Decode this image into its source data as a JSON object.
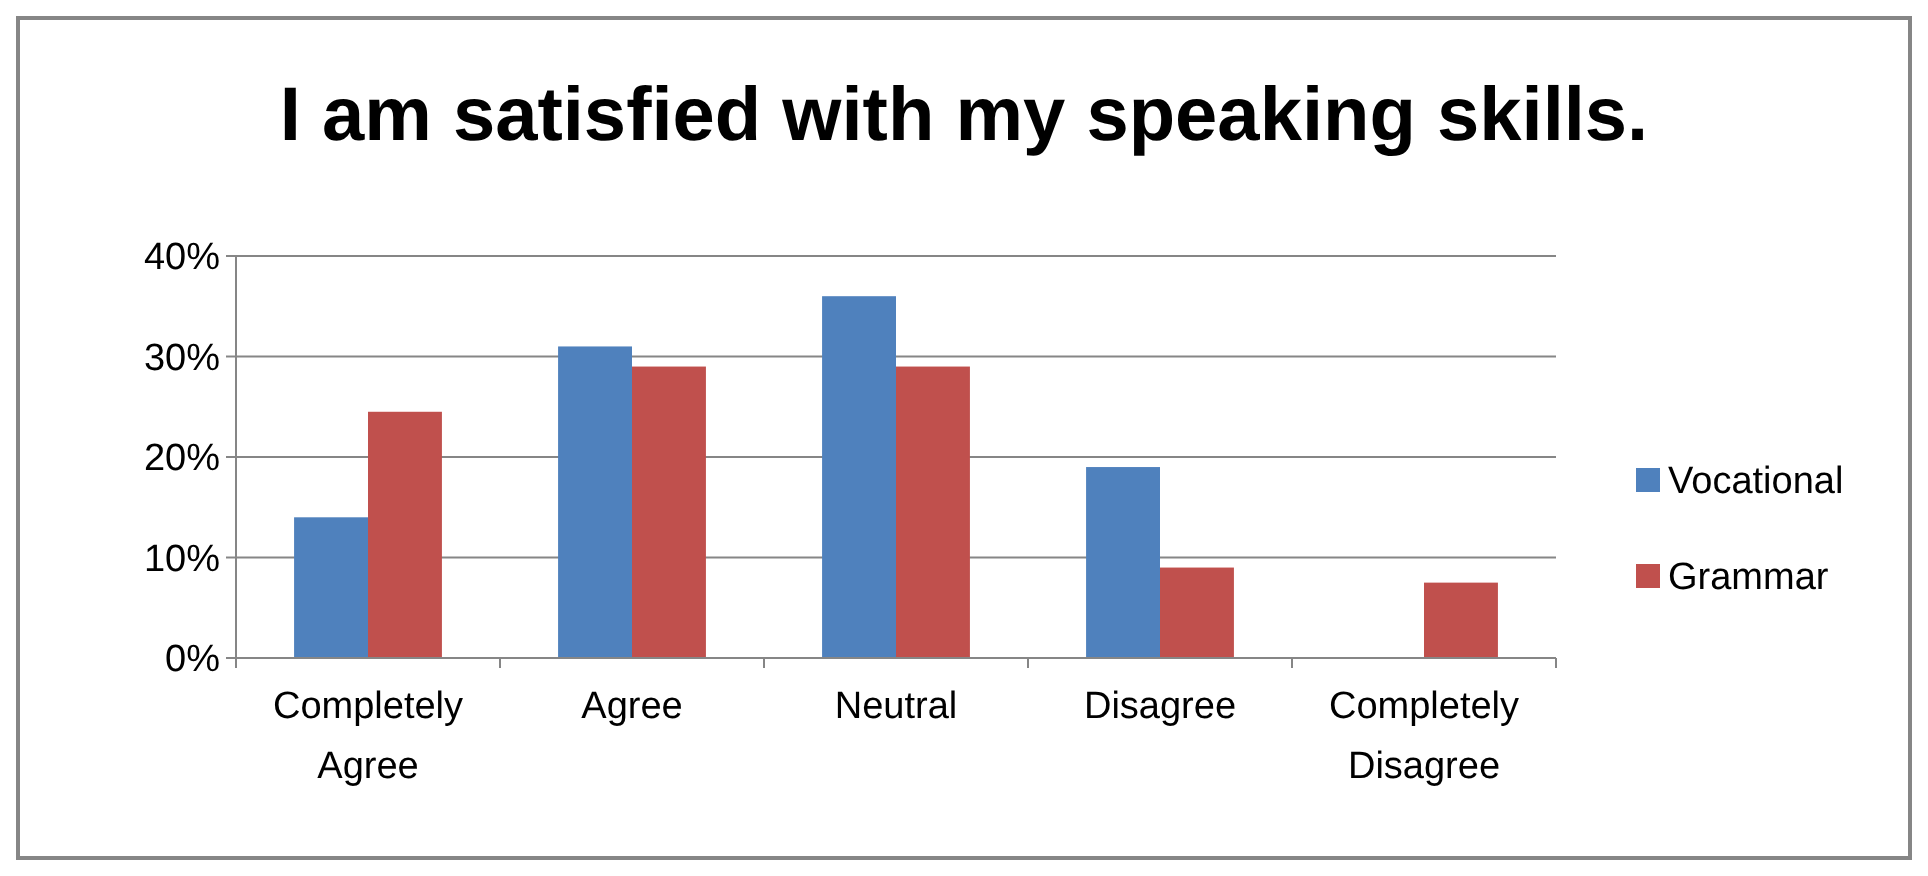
{
  "chart_data": {
    "type": "bar",
    "title": "I am satisfied with my speaking skills.",
    "categories": [
      "Completely Agree",
      "Agree",
      "Neutral",
      "Disagree",
      "Completely Disagree"
    ],
    "series": [
      {
        "name": "Vocational",
        "color": "#4f81bd",
        "values": [
          14,
          31,
          36,
          19,
          0
        ]
      },
      {
        "name": "Grammar",
        "color": "#c0504d",
        "values": [
          24.5,
          29,
          29,
          9,
          7.5
        ]
      }
    ],
    "ylim": [
      0,
      40
    ],
    "yticks": [
      {
        "value": 0,
        "label": "0%"
      },
      {
        "value": 10,
        "label": "10%"
      },
      {
        "value": 20,
        "label": "20%"
      },
      {
        "value": 30,
        "label": "30%"
      },
      {
        "value": 40,
        "label": "40%"
      }
    ],
    "grid": "y",
    "legend": "right"
  }
}
